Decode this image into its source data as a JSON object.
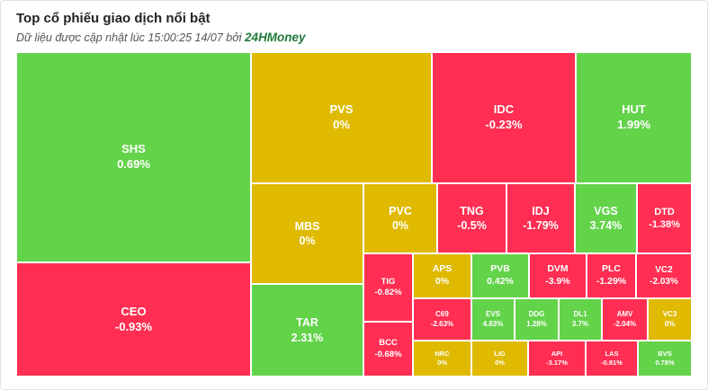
{
  "header": {
    "title": "Top cổ phiếu giao dịch nổi bật",
    "subtitle_prefix": "Dữ liệu được cập nhật lúc 15:00:25 14/07 bởi",
    "brand": "24HMoney"
  },
  "colors": {
    "up": "#63d34a",
    "flat": "#dfba00",
    "down": "#ff2e52"
  },
  "chart_data": {
    "type": "treemap",
    "title": "Top cổ phiếu giao dịch nổi bật",
    "items": [
      {
        "ticker": "SHS",
        "change": "0.69%",
        "value": 0.69,
        "status": "up"
      },
      {
        "ticker": "CEO",
        "change": "-0.93%",
        "value": -0.93,
        "status": "down"
      },
      {
        "ticker": "PVS",
        "change": "0%",
        "value": 0,
        "status": "flat"
      },
      {
        "ticker": "IDC",
        "change": "-0.23%",
        "value": -0.23,
        "status": "down"
      },
      {
        "ticker": "HUT",
        "change": "1.99%",
        "value": 1.99,
        "status": "up"
      },
      {
        "ticker": "MBS",
        "change": "0%",
        "value": 0,
        "status": "flat"
      },
      {
        "ticker": "PVC",
        "change": "0%",
        "value": 0,
        "status": "flat"
      },
      {
        "ticker": "TNG",
        "change": "-0.5%",
        "value": -0.5,
        "status": "down"
      },
      {
        "ticker": "IDJ",
        "change": "-1.79%",
        "value": -1.79,
        "status": "down"
      },
      {
        "ticker": "VGS",
        "change": "3.74%",
        "value": 3.74,
        "status": "up"
      },
      {
        "ticker": "DTD",
        "change": "-1.38%",
        "value": -1.38,
        "status": "down"
      },
      {
        "ticker": "TAR",
        "change": "2.31%",
        "value": 2.31,
        "status": "up"
      },
      {
        "ticker": "TIG",
        "change": "-0.82%",
        "value": -0.82,
        "status": "down"
      },
      {
        "ticker": "APS",
        "change": "0%",
        "value": 0,
        "status": "flat"
      },
      {
        "ticker": "PVB",
        "change": "0.42%",
        "value": 0.42,
        "status": "up"
      },
      {
        "ticker": "DVM",
        "change": "-3.9%",
        "value": -3.9,
        "status": "down"
      },
      {
        "ticker": "PLC",
        "change": "-1.29%",
        "value": -1.29,
        "status": "down"
      },
      {
        "ticker": "VC2",
        "change": "-2.03%",
        "value": -2.03,
        "status": "down"
      },
      {
        "ticker": "C69",
        "change": "-2.63%",
        "value": -2.63,
        "status": "down"
      },
      {
        "ticker": "EVS",
        "change": "4.83%",
        "value": 4.83,
        "status": "up"
      },
      {
        "ticker": "DDG",
        "change": "1.28%",
        "value": 1.28,
        "status": "up"
      },
      {
        "ticker": "DL1",
        "change": "3.7%",
        "value": 3.7,
        "status": "up"
      },
      {
        "ticker": "AMV",
        "change": "-2.04%",
        "value": -2.04,
        "status": "down"
      },
      {
        "ticker": "VC3",
        "change": "0%",
        "value": 0,
        "status": "flat"
      },
      {
        "ticker": "BCC",
        "change": "-0.68%",
        "value": -0.68,
        "status": "down"
      },
      {
        "ticker": "NRC",
        "change": "0%",
        "value": 0,
        "status": "flat"
      },
      {
        "ticker": "LIG",
        "change": "0%",
        "value": 0,
        "status": "flat"
      },
      {
        "ticker": "API",
        "change": "-3.17%",
        "value": -3.17,
        "status": "down"
      },
      {
        "ticker": "LAS",
        "change": "-0.81%",
        "value": -0.81,
        "status": "down"
      },
      {
        "ticker": "BVS",
        "change": "0.78%",
        "value": 0.78,
        "status": "up"
      }
    ]
  }
}
